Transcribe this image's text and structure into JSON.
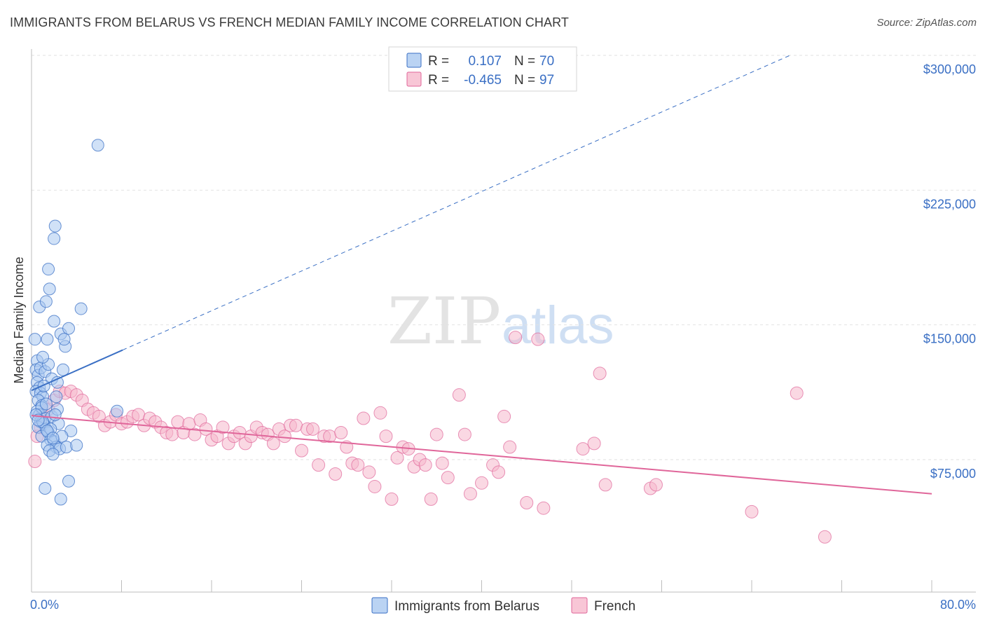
{
  "title": "IMMIGRANTS FROM BELARUS VS FRENCH MEDIAN FAMILY INCOME CORRELATION CHART",
  "source": "Source: ZipAtlas.com",
  "watermark": {
    "zip": "ZIP",
    "atlas": "atlas"
  },
  "colors": {
    "blue": "#3a6fc4",
    "blue_fill": "#a9c8f0",
    "pink": "#e0669a",
    "pink_fill": "#f6b8cc"
  },
  "legend": {
    "rows": [
      {
        "r_label": "R =",
        "r_value": "0.107",
        "n_label": "N =",
        "n_value": "70"
      },
      {
        "r_label": "R =",
        "r_value": "-0.465",
        "n_label": "N =",
        "n_value": "97"
      }
    ]
  },
  "chart_data": {
    "type": "scatter",
    "title": "IMMIGRANTS FROM BELARUS VS FRENCH MEDIAN FAMILY INCOME CORRELATION CHART",
    "xlabel": "",
    "ylabel": "Median Family Income",
    "xlim": [
      0,
      80
    ],
    "ylim": [
      0,
      320000
    ],
    "x_tick_labels": [
      "0.0%",
      "80.0%"
    ],
    "y_ticks": [
      {
        "value": 75000,
        "label": "$75,000"
      },
      {
        "value": 150000,
        "label": "$150,000"
      },
      {
        "value": 225000,
        "label": "$225,000"
      },
      {
        "value": 300000,
        "label": "$300,000"
      }
    ],
    "series": [
      {
        "name": "Immigrants from Belarus",
        "r": 0.107,
        "n": 70,
        "trend": {
          "x0": 0,
          "y0": 113500,
          "x1_solid": 8.1,
          "y1_solid": 136000,
          "x1": 67.4,
          "y1": 300000
        },
        "points": [
          [
            0.3,
            142000
          ],
          [
            0.5,
            130000
          ],
          [
            0.4,
            125000
          ],
          [
            0.6,
            122000
          ],
          [
            0.5,
            118000
          ],
          [
            0.7,
            115000
          ],
          [
            0.4,
            113000
          ],
          [
            0.8,
            112000
          ],
          [
            1.0,
            110000
          ],
          [
            0.6,
            108000
          ],
          [
            0.9,
            105000
          ],
          [
            0.5,
            102000
          ],
          [
            0.7,
            100000
          ],
          [
            1.2,
            98000
          ],
          [
            0.8,
            96000
          ],
          [
            1.1,
            95000
          ],
          [
            0.6,
            93000
          ],
          [
            1.3,
            92000
          ],
          [
            1.5,
            90000
          ],
          [
            0.9,
            88000
          ],
          [
            1.7,
            86000
          ],
          [
            2.0,
            85000
          ],
          [
            1.4,
            83000
          ],
          [
            2.2,
            82000
          ],
          [
            1.6,
            80000
          ],
          [
            2.5,
            81000
          ],
          [
            1.9,
            78000
          ],
          [
            0.8,
            126000
          ],
          [
            1.2,
            124000
          ],
          [
            1.5,
            128000
          ],
          [
            1.0,
            132000
          ],
          [
            2.8,
            125000
          ],
          [
            1.8,
            120000
          ],
          [
            2.3,
            118000
          ],
          [
            1.1,
            116000
          ],
          [
            0.7,
            160000
          ],
          [
            1.3,
            163000
          ],
          [
            1.6,
            170000
          ],
          [
            2.0,
            152000
          ],
          [
            2.6,
            145000
          ],
          [
            3.0,
            138000
          ],
          [
            3.3,
            148000
          ],
          [
            1.5,
            181000
          ],
          [
            2.0,
            198000
          ],
          [
            2.1,
            205000
          ],
          [
            5.9,
            250000
          ],
          [
            4.4,
            159000
          ],
          [
            1.4,
            142000
          ],
          [
            2.9,
            142000
          ],
          [
            0.9,
            104000
          ],
          [
            1.8,
            99000
          ],
          [
            2.4,
            95000
          ],
          [
            3.5,
            91000
          ],
          [
            2.7,
            88000
          ],
          [
            3.1,
            82000
          ],
          [
            4.0,
            83000
          ],
          [
            1.2,
            59000
          ],
          [
            3.3,
            63000
          ],
          [
            2.6,
            53000
          ],
          [
            7.6,
            102000
          ],
          [
            2.2,
            110000
          ],
          [
            2.3,
            103000
          ],
          [
            1.0,
            96000
          ],
          [
            1.7,
            92000
          ],
          [
            0.4,
            100000
          ],
          [
            0.6,
            97000
          ],
          [
            1.4,
            91000
          ],
          [
            1.9,
            87000
          ],
          [
            2.1,
            100000
          ],
          [
            1.3,
            106000
          ]
        ]
      },
      {
        "name": "French",
        "r": -0.465,
        "n": 97,
        "trend": {
          "x0": 0,
          "y0": 99500,
          "x1": 80,
          "y1": 56000
        },
        "points": [
          [
            0.3,
            74000
          ],
          [
            0.5,
            88000
          ],
          [
            0.8,
            93000
          ],
          [
            1.0,
            100000
          ],
          [
            1.5,
            103000
          ],
          [
            2.0,
            108000
          ],
          [
            2.5,
            113000
          ],
          [
            3.0,
            112000
          ],
          [
            3.5,
            113000
          ],
          [
            4.0,
            111000
          ],
          [
            4.5,
            108000
          ],
          [
            5.0,
            103000
          ],
          [
            5.5,
            101000
          ],
          [
            6.0,
            99000
          ],
          [
            6.5,
            94000
          ],
          [
            7.0,
            96000
          ],
          [
            7.5,
            100000
          ],
          [
            8.0,
            95000
          ],
          [
            8.5,
            96000
          ],
          [
            9.0,
            99000
          ],
          [
            9.5,
            100000
          ],
          [
            10.0,
            94000
          ],
          [
            10.5,
            98000
          ],
          [
            11.0,
            96000
          ],
          [
            11.5,
            93000
          ],
          [
            12.0,
            90000
          ],
          [
            12.5,
            89000
          ],
          [
            13.0,
            96000
          ],
          [
            13.5,
            90000
          ],
          [
            14.0,
            95000
          ],
          [
            14.5,
            89000
          ],
          [
            15.0,
            97000
          ],
          [
            15.5,
            92000
          ],
          [
            16.0,
            86000
          ],
          [
            16.5,
            88000
          ],
          [
            17.0,
            93000
          ],
          [
            17.5,
            84000
          ],
          [
            18.0,
            88000
          ],
          [
            18.5,
            90000
          ],
          [
            19.0,
            84000
          ],
          [
            19.5,
            88000
          ],
          [
            20.0,
            93000
          ],
          [
            20.5,
            90000
          ],
          [
            21.0,
            89000
          ],
          [
            21.5,
            84000
          ],
          [
            22.0,
            92000
          ],
          [
            22.5,
            88000
          ],
          [
            23.0,
            94000
          ],
          [
            23.5,
            94000
          ],
          [
            24.0,
            80000
          ],
          [
            24.5,
            92000
          ],
          [
            25.0,
            92000
          ],
          [
            25.5,
            72000
          ],
          [
            26.0,
            88000
          ],
          [
            26.5,
            88000
          ],
          [
            27.0,
            67000
          ],
          [
            27.5,
            90000
          ],
          [
            28.0,
            82000
          ],
          [
            28.5,
            73000
          ],
          [
            29.0,
            72000
          ],
          [
            29.5,
            98000
          ],
          [
            30.0,
            68000
          ],
          [
            30.5,
            60000
          ],
          [
            31.0,
            101000
          ],
          [
            31.5,
            88000
          ],
          [
            32.0,
            53000
          ],
          [
            32.5,
            76000
          ],
          [
            33.0,
            82000
          ],
          [
            33.5,
            81000
          ],
          [
            34.0,
            71000
          ],
          [
            34.5,
            75000
          ],
          [
            35.0,
            72000
          ],
          [
            35.5,
            53000
          ],
          [
            36.0,
            89000
          ],
          [
            36.5,
            73000
          ],
          [
            37.0,
            65000
          ],
          [
            38.0,
            111000
          ],
          [
            38.5,
            89000
          ],
          [
            39.0,
            56000
          ],
          [
            40.0,
            62000
          ],
          [
            41.0,
            72000
          ],
          [
            41.5,
            68000
          ],
          [
            42.0,
            99000
          ],
          [
            42.5,
            82000
          ],
          [
            43.0,
            143000
          ],
          [
            44.0,
            51000
          ],
          [
            45.0,
            142000
          ],
          [
            45.5,
            48000
          ],
          [
            49.0,
            81000
          ],
          [
            50.0,
            84000
          ],
          [
            50.5,
            123000
          ],
          [
            51.0,
            61000
          ],
          [
            55.0,
            59000
          ],
          [
            55.5,
            61000
          ],
          [
            64.0,
            46000
          ],
          [
            68.0,
            112000
          ],
          [
            70.5,
            32000
          ]
        ]
      }
    ]
  }
}
